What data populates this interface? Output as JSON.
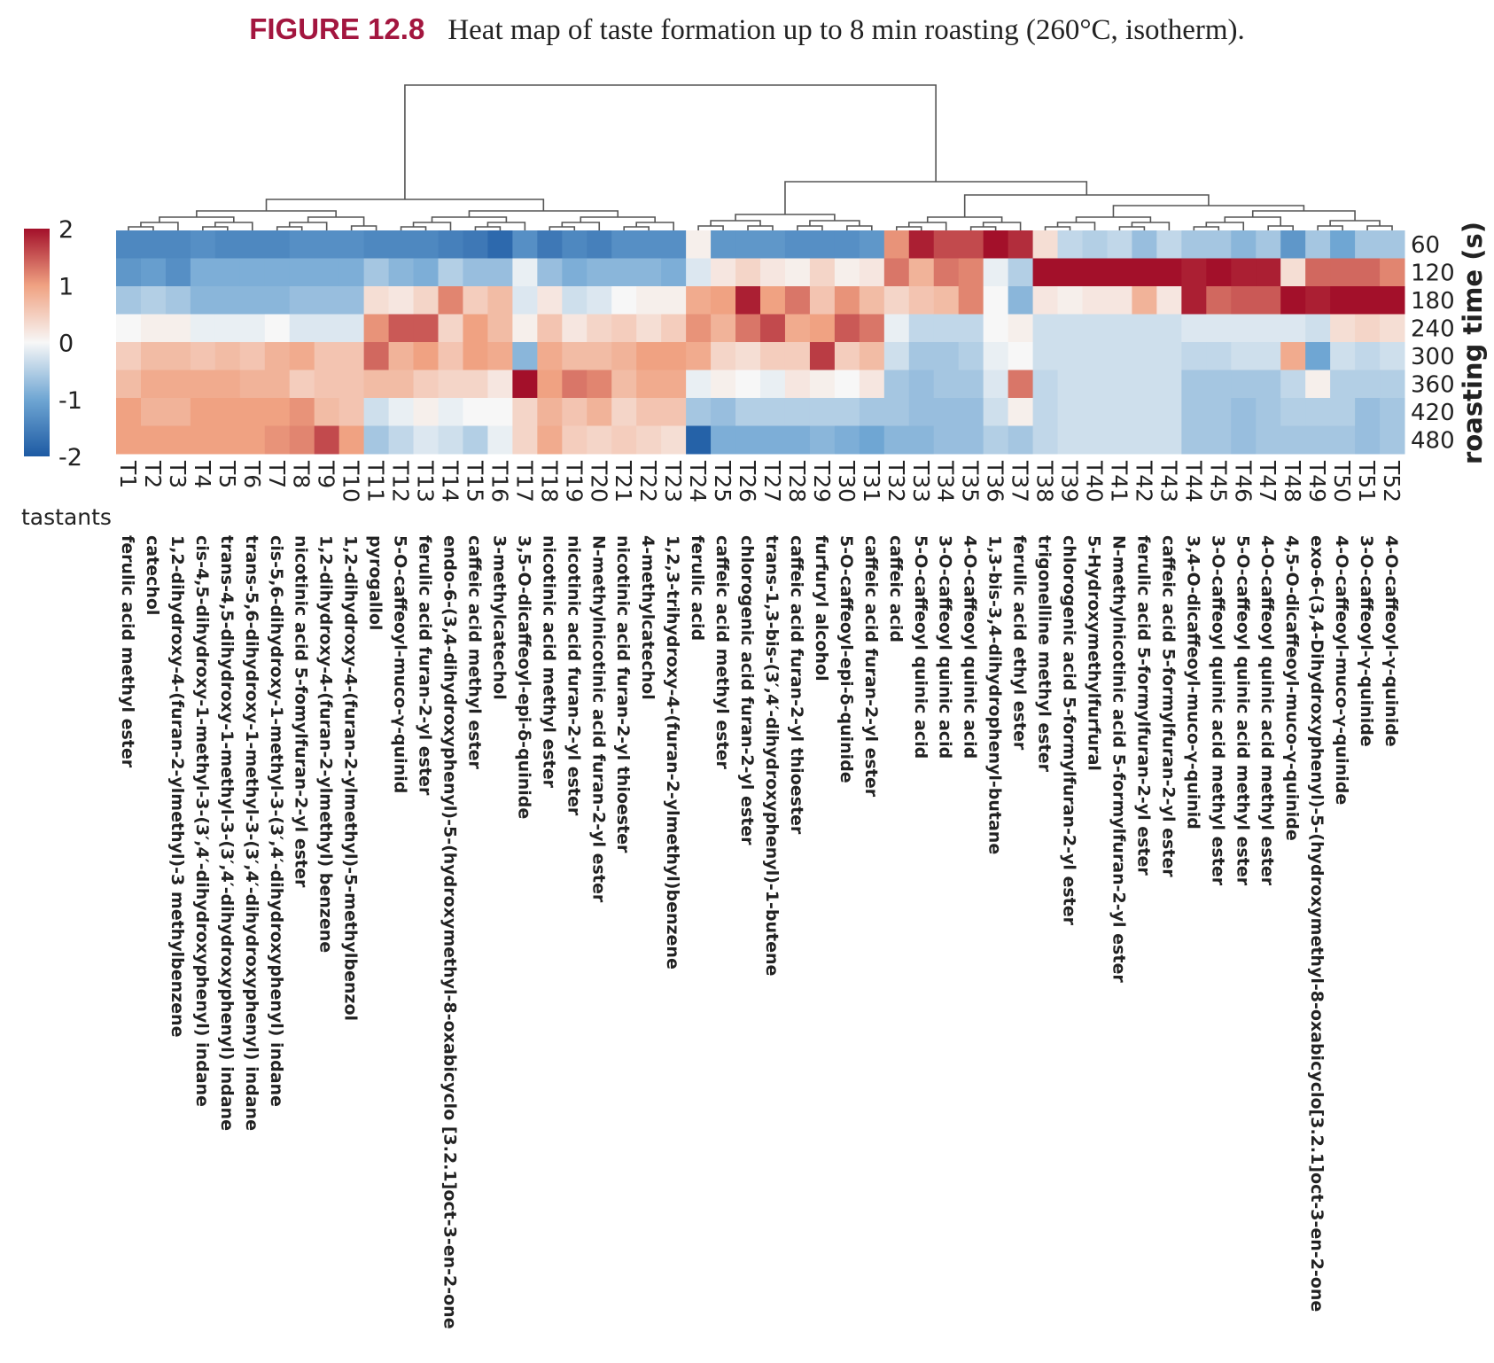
{
  "caption": {
    "figure": "FIGURE 12.8",
    "text": "Heat map of taste formation up to 8 min roasting (260°C, isotherm)."
  },
  "chart_data": {
    "type": "heatmap",
    "xlabel": "tastants",
    "ylabel": "roasting time (s)",
    "rows": [
      "60",
      "120",
      "180",
      "240",
      "300",
      "360",
      "420",
      "480"
    ],
    "colorbar": {
      "ticks": [
        "2",
        "1",
        "0",
        "-1",
        "-2"
      ],
      "range": [
        -2,
        2
      ],
      "low_color": "#1d5aa3",
      "mid_color": "#f7f7f7",
      "high_color": "#a3102a"
    },
    "columns": [
      "T1",
      "T2",
      "T3",
      "T4",
      "T5",
      "T6",
      "T7",
      "T8",
      "T9",
      "T10",
      "T11",
      "T12",
      "T13",
      "T14",
      "T15",
      "T16",
      "T17",
      "T18",
      "T19",
      "T20",
      "T21",
      "T22",
      "T23",
      "T24",
      "T25",
      "T26",
      "T27",
      "T28",
      "T29",
      "T30",
      "T31",
      "T32",
      "T33",
      "T34",
      "T35",
      "T36",
      "T37",
      "T38",
      "T39",
      "T40",
      "T41",
      "T42",
      "T43",
      "T44",
      "T45",
      "T46",
      "T47",
      "T48",
      "T49",
      "T50",
      "T51",
      "T52"
    ],
    "names": [
      "ferulic acid methyl ester",
      "catechol",
      "1,2-dihydroxy-4-(furan-2-ylmethyl)-3 methylbenzene",
      "cis-4,5-dihydroxy-1-methyl-3-(3′,4′-dihydroxyphenyl) indane",
      "trans-4,5-dihydroxy-1-methyl-3-(3′,4′-dihydroxyphenyl) indane",
      "trans-5,6-dihydroxy-1-methyl-3-(3′,4′-dihydroxyphenyl) indane",
      "cis-5,6-dihydroxy-1-methyl-3-(3′,4′-dihydroxyphenyl) indane",
      "nicotinic acid 5-fomylfuran-2-yl ester",
      "1,2-dihydroxy-4-(furan-2-ylmethyl) benzene",
      "1,2-dihydroxy-4-(furan-2-ylmethyl)-5-methylbenzol",
      "pyrogallol",
      "5-O-caffeoyl-muco-γ-quinid",
      "ferulic acid furan-2-yl ester",
      "endo-6-(3,4-dihydroxyphenyl)-5-(hydroxymethyl-8-oxabicyclo [3.2.1]oct-3-en-2-one",
      "caffeic acid methyl ester",
      "3-methylcatechol",
      "3,5-O-dicaffeoyl-epi-δ-quinide",
      "nicotinic acid methyl ester",
      "nicotinic acid furan-2-yl ester",
      "N-methylnicotinic acid furan-2-yl ester",
      "nicotinic acid furan-2-yl thioester",
      "4-methylcatechol",
      "1,2,3-trihydroxy-4-(furan-2-ylmethyl)benzene",
      "ferulic acid",
      "caffeic acid methyl ester",
      "chlorogenic acid furan-2-yl ester",
      "trans-1,3-bis-(3′,4′-dihydroxyphenyl)-1-butene",
      "caffeic acid furan-2-yl thioester",
      "furfuryl alcohol",
      "5-O-caffeoyl-epi-δ-quinide",
      "caffeic acid furan-2-yl ester",
      "caffeic acid",
      "5-O-caffeoyl quinic acid",
      "3-O-caffeoyl quinic acid",
      "4-O-caffeoyl quinic acid",
      "1,3-bis-3,4-dihydrophenyl-butane",
      "ferulic acid ethyl ester",
      "trigonelline methyl ester",
      "chlorogenic acid 5-formylfuran-2-yl ester",
      "5-Hydroxymethylfurfural",
      "N-methylnicotinic acid 5-formylfuran-2-yl ester",
      "ferulic acid 5-formylfuran-2-yl ester",
      "caffeic acid 5-formylfuran-2-yl ester",
      "3,4-O-dicaffeoyl-muco-γ-quinid",
      "3-O-caffeoyl quinic acid methyl ester",
      "5-O-caffeoyl quinic acid methyl ester",
      "4-O-caffeoyl quinic acid methyl ester",
      "4,5-O-dicaffeoyl-muco-γ-quinide",
      "exo-6-(3,4-Dihydroxyphenyl)-5-(hydroxymethyl-8-oxabicyclo[3.2.1]oct-3-en-2-one",
      "4-O-caffeoyl-muco-γ-quinide",
      "3-O-caffeoyl-γ-quinide",
      "4-O-caffeoyl-γ-quinide"
    ],
    "values": [
      [
        -1.4,
        -1.4,
        -1.4,
        -1.3,
        -1.4,
        -1.4,
        -1.4,
        -1.3,
        -1.3,
        -1.3,
        -1.4,
        -1.4,
        -1.4,
        -1.5,
        -1.6,
        -1.8,
        -1.3,
        -1.6,
        -1.4,
        -1.5,
        -1.3,
        -1.3,
        -1.3,
        0.1,
        -1.2,
        -1.2,
        -1.2,
        -1.3,
        -1.3,
        -1.3,
        -1.2,
        1.1,
        1.9,
        1.6,
        1.6,
        2.3,
        1.8,
        0.3,
        -0.4,
        -0.5,
        -0.4,
        -0.7,
        -0.4,
        -0.6,
        -0.6,
        -0.8,
        -0.6,
        -1.2,
        -0.6,
        -1.0,
        -0.6,
        -0.6
      ],
      [
        -1.2,
        -1.1,
        -1.3,
        -0.9,
        -0.9,
        -0.9,
        -0.9,
        -0.9,
        -0.9,
        -0.9,
        -0.6,
        -0.8,
        -0.9,
        -0.5,
        -0.7,
        -0.7,
        -0.1,
        -0.7,
        -0.9,
        -0.8,
        -0.8,
        -0.8,
        -0.9,
        -0.2,
        0.2,
        0.4,
        0.2,
        0.1,
        0.4,
        0.1,
        0.2,
        1.3,
        0.8,
        1.3,
        1.2,
        -0.1,
        -0.5,
        2.3,
        2.4,
        2.4,
        2.4,
        2.4,
        2.4,
        1.9,
        2.0,
        1.9,
        1.9,
        0.3,
        1.4,
        1.4,
        1.4,
        1.2
      ],
      [
        -0.6,
        -0.5,
        -0.6,
        -0.8,
        -0.8,
        -0.8,
        -0.8,
        -0.7,
        -0.7,
        -0.7,
        0.3,
        0.2,
        0.4,
        1.2,
        0.5,
        0.7,
        -0.2,
        0.2,
        -0.3,
        -0.2,
        0.0,
        0.1,
        0.1,
        0.9,
        1.0,
        1.9,
        1.0,
        1.3,
        0.6,
        1.1,
        0.7,
        0.4,
        0.6,
        0.7,
        1.2,
        0.0,
        -0.8,
        0.2,
        0.1,
        0.2,
        0.2,
        0.8,
        0.2,
        1.9,
        1.4,
        1.5,
        1.5,
        2.3,
        1.9,
        2.0,
        2.0,
        2.1
      ],
      [
        0.0,
        0.1,
        0.1,
        -0.1,
        -0.1,
        -0.1,
        0.0,
        -0.2,
        -0.2,
        -0.2,
        1.1,
        1.5,
        1.5,
        0.4,
        1.0,
        0.7,
        0.1,
        0.6,
        0.2,
        0.4,
        0.5,
        0.3,
        0.5,
        1.1,
        0.8,
        1.3,
        1.6,
        0.9,
        1.0,
        1.5,
        1.3,
        -0.1,
        -0.4,
        -0.4,
        -0.4,
        0.0,
        0.1,
        -0.3,
        -0.3,
        -0.3,
        -0.3,
        -0.3,
        -0.3,
        -0.2,
        -0.2,
        -0.2,
        -0.2,
        -0.2,
        -0.3,
        0.3,
        0.4,
        0.3
      ],
      [
        0.5,
        0.7,
        0.7,
        0.6,
        0.7,
        0.6,
        0.8,
        0.9,
        0.6,
        0.6,
        1.4,
        0.8,
        1.0,
        0.6,
        1.0,
        0.9,
        -0.8,
        0.9,
        0.7,
        0.7,
        0.8,
        1.0,
        1.0,
        0.9,
        0.4,
        0.3,
        0.5,
        0.5,
        1.7,
        0.5,
        0.7,
        -0.3,
        -0.6,
        -0.6,
        -0.5,
        -0.1,
        0.0,
        -0.3,
        -0.3,
        -0.3,
        -0.3,
        -0.3,
        -0.3,
        -0.4,
        -0.4,
        -0.3,
        -0.3,
        0.9,
        -1.0,
        -0.3,
        -0.4,
        -0.3
      ],
      [
        0.7,
        0.9,
        0.9,
        0.9,
        0.9,
        0.8,
        0.8,
        0.5,
        0.6,
        0.6,
        0.7,
        0.7,
        0.5,
        0.4,
        0.4,
        0.2,
        2.4,
        1.0,
        1.3,
        1.2,
        0.7,
        0.9,
        0.9,
        -0.1,
        0.1,
        0.0,
        -0.1,
        0.2,
        0.1,
        0.0,
        0.2,
        -0.6,
        -0.7,
        -0.6,
        -0.6,
        -0.2,
        1.3,
        -0.4,
        -0.3,
        -0.3,
        -0.3,
        -0.3,
        -0.3,
        -0.6,
        -0.6,
        -0.6,
        -0.6,
        -0.4,
        0.1,
        -0.5,
        -0.5,
        -0.5
      ],
      [
        1.0,
        0.8,
        0.8,
        1.0,
        1.0,
        1.0,
        1.0,
        1.1,
        0.7,
        0.6,
        -0.3,
        -0.1,
        0.1,
        -0.1,
        0.0,
        0.0,
        0.4,
        0.8,
        0.6,
        0.8,
        0.4,
        0.6,
        0.6,
        -0.6,
        -0.7,
        -0.5,
        -0.5,
        -0.5,
        -0.5,
        -0.5,
        -0.6,
        -0.6,
        -0.7,
        -0.7,
        -0.7,
        -0.3,
        0.1,
        -0.4,
        -0.3,
        -0.3,
        -0.3,
        -0.3,
        -0.3,
        -0.6,
        -0.6,
        -0.7,
        -0.6,
        -0.5,
        -0.5,
        -0.5,
        -0.7,
        -0.6
      ],
      [
        1.0,
        1.0,
        1.0,
        1.0,
        1.0,
        1.0,
        1.1,
        1.2,
        1.6,
        1.0,
        -0.6,
        -0.4,
        -0.2,
        -0.3,
        -0.5,
        -0.1,
        0.4,
        0.9,
        0.5,
        0.4,
        0.5,
        0.4,
        0.3,
        -1.9,
        -0.9,
        -0.9,
        -0.9,
        -0.9,
        -0.8,
        -0.9,
        -1.0,
        -0.8,
        -0.8,
        -0.7,
        -0.7,
        -0.5,
        -0.6,
        -0.4,
        -0.3,
        -0.3,
        -0.3,
        -0.3,
        -0.3,
        -0.6,
        -0.6,
        -0.7,
        -0.6,
        -0.6,
        -0.6,
        -0.6,
        -0.7,
        -0.6
      ]
    ]
  }
}
